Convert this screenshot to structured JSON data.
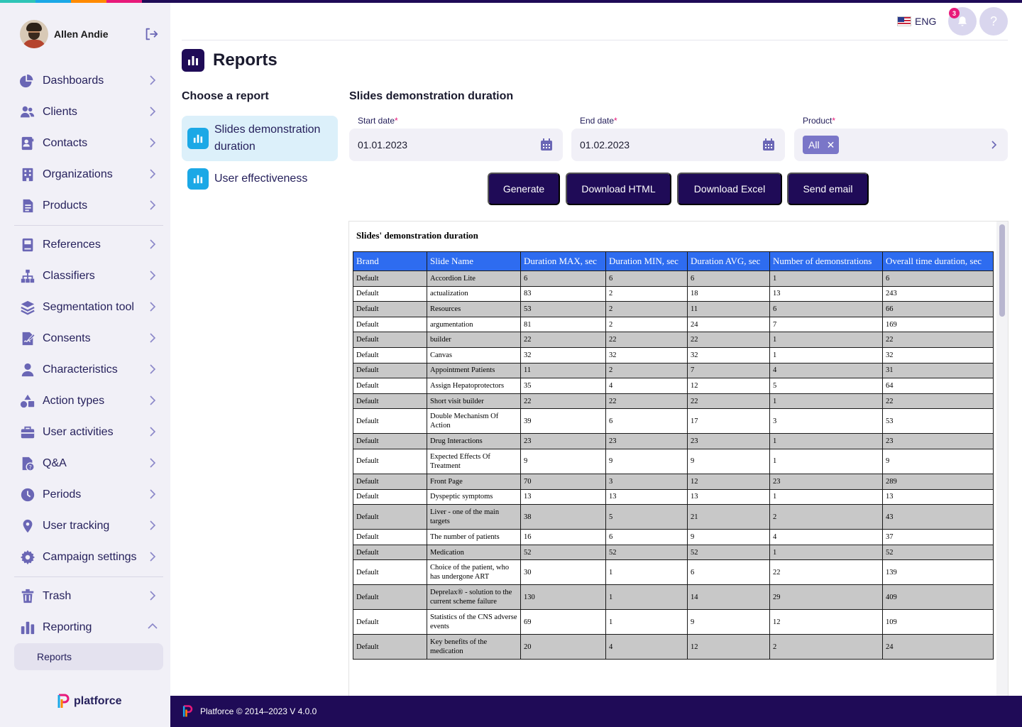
{
  "user": {
    "name": "Allen Andie"
  },
  "sidebar": {
    "groups": [
      [
        {
          "label": "Dashboards",
          "icon": "pie-chart-icon"
        },
        {
          "label": "Clients",
          "icon": "users-icon"
        },
        {
          "label": "Contacts",
          "icon": "contact-card-icon"
        },
        {
          "label": "Organizations",
          "icon": "building-icon"
        },
        {
          "label": "Products",
          "icon": "document-icon"
        }
      ],
      [
        {
          "label": "References",
          "icon": "book-icon"
        },
        {
          "label": "Classifiers",
          "icon": "sitemap-icon"
        },
        {
          "label": "Segmentation tool",
          "icon": "layers-icon"
        },
        {
          "label": "Consents",
          "icon": "signature-icon"
        },
        {
          "label": "Characteristics",
          "icon": "person-icon"
        },
        {
          "label": "Action types",
          "icon": "shapes-icon"
        },
        {
          "label": "User activities",
          "icon": "briefcase-icon"
        },
        {
          "label": "Q&A",
          "icon": "question-document-icon"
        },
        {
          "label": "Periods",
          "icon": "clock-icon"
        },
        {
          "label": "User tracking",
          "icon": "location-pin-icon"
        },
        {
          "label": "Campaign settings",
          "icon": "gear-icon"
        }
      ],
      [
        {
          "label": "Trash",
          "icon": "trash-icon"
        },
        {
          "label": "Reporting",
          "icon": "bar-chart-icon",
          "expanded": true
        }
      ]
    ],
    "subitem": "Reports",
    "brand": "platforce"
  },
  "header": {
    "language": "ENG",
    "notifications_count": "3",
    "help": "?"
  },
  "page": {
    "title": "Reports",
    "choose_title": "Choose a report",
    "reports": [
      {
        "label": "Slides demonstration duration",
        "active": true
      },
      {
        "label": "User effectiveness",
        "active": false
      }
    ]
  },
  "report": {
    "title": "Slides demonstration duration",
    "start_date_label": "Start date",
    "start_date": "01.01.2023",
    "end_date_label": "End date",
    "end_date": "01.02.2023",
    "product_label": "Product",
    "product_chip": "All",
    "buttons": {
      "generate": "Generate",
      "download_html": "Download HTML",
      "download_excel": "Download Excel",
      "send_email": "Send email"
    },
    "heading": "Slides' demonstration duration",
    "columns": [
      "Brand",
      "Slide Name",
      "Duration MAX, sec",
      "Duration MIN, sec",
      "Duration AVG, sec",
      "Number of demonstrations",
      "Overall time duration, sec"
    ],
    "rows": [
      [
        "Default",
        "Accordion Lite",
        "6",
        "6",
        "6",
        "1",
        "6"
      ],
      [
        "Default",
        "actualization",
        "83",
        "2",
        "18",
        "13",
        "243"
      ],
      [
        "Default",
        "Resources",
        "53",
        "2",
        "11",
        "6",
        "66"
      ],
      [
        "Default",
        "argumentation",
        "81",
        "2",
        "24",
        "7",
        "169"
      ],
      [
        "Default",
        "builder",
        "22",
        "22",
        "22",
        "1",
        "22"
      ],
      [
        "Default",
        "Canvas",
        "32",
        "32",
        "32",
        "1",
        "32"
      ],
      [
        "Default",
        "Appointment Patients",
        "11",
        "2",
        "7",
        "4",
        "31"
      ],
      [
        "Default",
        "Assign Hepatoprotectors",
        "35",
        "4",
        "12",
        "5",
        "64"
      ],
      [
        "Default",
        "Short visit builder",
        "22",
        "22",
        "22",
        "1",
        "22"
      ],
      [
        "Default",
        "Double Mechanism Of Action",
        "39",
        "6",
        "17",
        "3",
        "53"
      ],
      [
        "Default",
        "Drug Interactions",
        "23",
        "23",
        "23",
        "1",
        "23"
      ],
      [
        "Default",
        "Expected Effects Of Treatment",
        "9",
        "9",
        "9",
        "1",
        "9"
      ],
      [
        "Default",
        "Front Page",
        "70",
        "3",
        "12",
        "23",
        "289"
      ],
      [
        "Default",
        "Dyspeptic symptoms",
        "13",
        "13",
        "13",
        "1",
        "13"
      ],
      [
        "Default",
        "Liver - one of the main targets",
        "38",
        "5",
        "21",
        "2",
        "43"
      ],
      [
        "Default",
        "The number of patients",
        "16",
        "6",
        "9",
        "4",
        "37"
      ],
      [
        "Default",
        "Medication",
        "52",
        "52",
        "52",
        "1",
        "52"
      ],
      [
        "Default",
        "Choice of the patient, who has undergone ART",
        "30",
        "1",
        "6",
        "22",
        "139"
      ],
      [
        "Default",
        "Deprelax® - solution to the current scheme failure",
        "130",
        "1",
        "14",
        "29",
        "409"
      ],
      [
        "Default",
        "Statistics of the CNS adverse events",
        "69",
        "1",
        "9",
        "12",
        "109"
      ],
      [
        "Default",
        "Key benefits of the medication",
        "20",
        "4",
        "12",
        "2",
        "24"
      ]
    ]
  },
  "footer": {
    "text": "Platforce © 2014–2023 V 4.0.0"
  },
  "colors": {
    "primary": "#1f0b57",
    "accent": "#e8197a",
    "header_blue": "#2e6cf0",
    "report_icon": "#1ba8e6"
  }
}
